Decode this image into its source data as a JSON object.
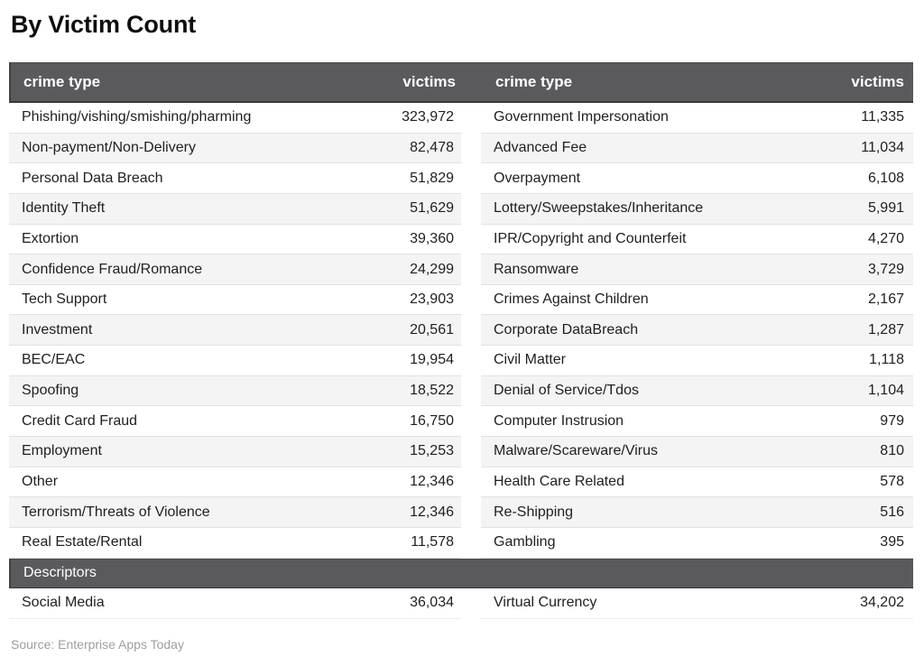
{
  "page": {
    "title": "By Victim Count",
    "source": "Source: Enterprise Apps Today"
  },
  "table": {
    "header": {
      "crime_type_label": "crime type",
      "victims_label": "victims"
    },
    "left_rows": [
      {
        "label": "Phishing/vishing/smishing/pharming",
        "value": "323,972"
      },
      {
        "label": "Non-payment/Non-Delivery",
        "value": "82,478"
      },
      {
        "label": "Personal Data Breach",
        "value": "51,829"
      },
      {
        "label": "Identity Theft",
        "value": "51,629"
      },
      {
        "label": "Extortion",
        "value": "39,360"
      },
      {
        "label": "Confidence Fraud/Romance",
        "value": "24,299"
      },
      {
        "label": "Tech Support",
        "value": "23,903"
      },
      {
        "label": "Investment",
        "value": "20,561"
      },
      {
        "label": "BEC/EAC",
        "value": "19,954"
      },
      {
        "label": "Spoofing",
        "value": "18,522"
      },
      {
        "label": "Credit Card Fraud",
        "value": "16,750"
      },
      {
        "label": "Employment",
        "value": "15,253"
      },
      {
        "label": "Other",
        "value": "12,346"
      },
      {
        "label": "Terrorism/Threats of Violence",
        "value": "12,346"
      },
      {
        "label": "Real Estate/Rental",
        "value": "11,578"
      }
    ],
    "right_rows": [
      {
        "label": "Government Impersonation",
        "value": "11,335"
      },
      {
        "label": "Advanced Fee",
        "value": "11,034"
      },
      {
        "label": "Overpayment",
        "value": "6,108"
      },
      {
        "label": "Lottery/Sweepstakes/Inheritance",
        "value": "5,991"
      },
      {
        "label": "IPR/Copyright and Counterfeit",
        "value": "4,270"
      },
      {
        "label": "Ransomware",
        "value": "3,729"
      },
      {
        "label": "Crimes Against Children",
        "value": "2,167"
      },
      {
        "label": "Corporate DataBreach",
        "value": "1,287"
      },
      {
        "label": "Civil Matter",
        "value": "1,118"
      },
      {
        "label": "Denial of Service/Tdos",
        "value": "1,104"
      },
      {
        "label": "Computer Instrusion",
        "value": "979"
      },
      {
        "label": "Malware/Scareware/Virus",
        "value": "810"
      },
      {
        "label": "Health Care Related",
        "value": "578"
      },
      {
        "label": "Re-Shipping",
        "value": "516"
      },
      {
        "label": "Gambling",
        "value": "395"
      }
    ],
    "descriptors": {
      "section_label": "Descriptors",
      "left_rows": [
        {
          "label": "Social Media",
          "value": "36,034"
        }
      ],
      "right_rows": [
        {
          "label": "Virtual Currency",
          "value": "34,202"
        }
      ]
    },
    "colors": {
      "header_bg": "#5a5a5c",
      "header_border": "#39383a",
      "header_text": "#ffffff",
      "row_stripe": "#f4f4f4",
      "row_divider": "#e2e2e2",
      "body_text": "#1f1f20",
      "source_text": "#9e9e9e"
    }
  },
  "chart_data": {
    "type": "table",
    "title": "By Victim Count",
    "columns": [
      "crime type",
      "victims"
    ],
    "rows": [
      [
        "Phishing/vishing/smishing/pharming",
        323972
      ],
      [
        "Non-payment/Non-Delivery",
        82478
      ],
      [
        "Personal Data Breach",
        51829
      ],
      [
        "Identity Theft",
        51629
      ],
      [
        "Extortion",
        39360
      ],
      [
        "Confidence Fraud/Romance",
        24299
      ],
      [
        "Tech Support",
        23903
      ],
      [
        "Investment",
        20561
      ],
      [
        "BEC/EAC",
        19954
      ],
      [
        "Spoofing",
        18522
      ],
      [
        "Credit Card Fraud",
        16750
      ],
      [
        "Employment",
        15253
      ],
      [
        "Other",
        12346
      ],
      [
        "Terrorism/Threats of Violence",
        12346
      ],
      [
        "Real Estate/Rental",
        11578
      ],
      [
        "Government Impersonation",
        11335
      ],
      [
        "Advanced Fee",
        11034
      ],
      [
        "Overpayment",
        6108
      ],
      [
        "Lottery/Sweepstakes/Inheritance",
        5991
      ],
      [
        "IPR/Copyright and Counterfeit",
        4270
      ],
      [
        "Ransomware",
        3729
      ],
      [
        "Crimes Against Children",
        2167
      ],
      [
        "Corporate DataBreach",
        1287
      ],
      [
        "Civil Matter",
        1118
      ],
      [
        "Denial of Service/Tdos",
        1104
      ],
      [
        "Computer Instrusion",
        979
      ],
      [
        "Malware/Scareware/Virus",
        810
      ],
      [
        "Health Care Related",
        578
      ],
      [
        "Re-Shipping",
        516
      ],
      [
        "Gambling",
        395
      ]
    ],
    "descriptor_rows": [
      [
        "Social Media",
        36034
      ],
      [
        "Virtual Currency",
        34202
      ]
    ],
    "source": "Enterprise Apps Today",
    "layout": "two side-by-side 'crime type / victims' column pairs; dark gray header bar; 'Descriptors' sub-section bar near bottom; alternating row stripes"
  }
}
